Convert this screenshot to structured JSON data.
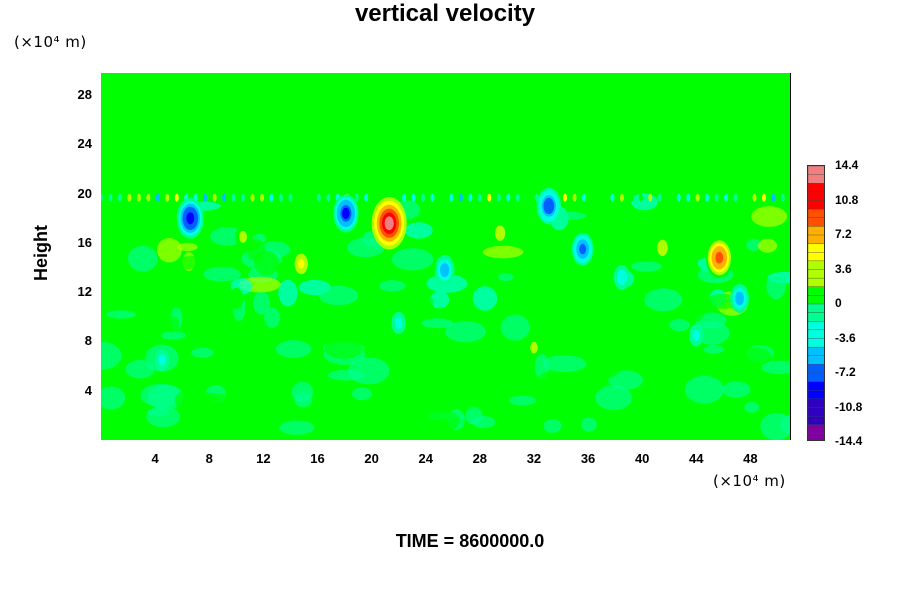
{
  "chart_data": {
    "type": "heatmap",
    "title": "vertical velocity",
    "ylabel": "Height",
    "y_unit_label": "(×10⁴ m)",
    "x_unit_label": "(×10⁴ m)",
    "x_ticks": [
      "4",
      "8",
      "12",
      "16",
      "20",
      "24",
      "28",
      "32",
      "36",
      "40",
      "44",
      "48"
    ],
    "y_ticks": [
      "4",
      "8",
      "12",
      "16",
      "20",
      "24",
      "28"
    ],
    "xlim": [
      0,
      51
    ],
    "ylim": [
      0,
      29.8
    ],
    "colorbar_ticks": [
      "14.4",
      "10.8",
      "7.2",
      "3.6",
      "0",
      "-3.6",
      "-7.2",
      "-10.8",
      "-14.4"
    ],
    "colorbar_range": [
      -14.4,
      14.4
    ],
    "colorbar_levels": 32,
    "features": [
      {
        "x": 21.3,
        "y": 17.6,
        "value": 14.0
      },
      {
        "x": 45.7,
        "y": 14.8,
        "value": 9.5
      },
      {
        "x": 6.6,
        "y": 18.0,
        "value": -9.5
      },
      {
        "x": 18.1,
        "y": 18.4,
        "value": -8.5
      },
      {
        "x": 33.1,
        "y": 19.0,
        "value": -8.0
      },
      {
        "x": 35.6,
        "y": 15.5,
        "value": -6.5
      },
      {
        "x": 25.4,
        "y": 13.8,
        "value": -5.5
      },
      {
        "x": 14.8,
        "y": 14.3,
        "value": 4.5
      },
      {
        "x": 41.5,
        "y": 15.6,
        "value": 4.0
      },
      {
        "x": 47.2,
        "y": 11.5,
        "value": -5.0
      },
      {
        "x": 10.5,
        "y": 16.5,
        "value": 3.0
      },
      {
        "x": 29.5,
        "y": 16.8,
        "value": 3.5
      },
      {
        "x": 38.5,
        "y": 13.2,
        "value": -3.5
      },
      {
        "x": 4.5,
        "y": 6.5,
        "value": -2.5
      },
      {
        "x": 22.0,
        "y": 9.5,
        "value": -2.5
      },
      {
        "x": 32.0,
        "y": 7.5,
        "value": 2.5
      },
      {
        "x": 44.0,
        "y": 8.5,
        "value": -2.5
      },
      {
        "x": 10.0,
        "y": 11.5,
        "value": 2.0
      }
    ],
    "turbulent_layer": [
      10.5,
      20.0
    ]
  },
  "footer": {
    "time_label": "TIME = 8600000.0"
  },
  "colors": {
    "background": "#00ff00",
    "palette": [
      "#8000a0",
      "#3000c0",
      "#0000ff",
      "#0060ff",
      "#00c0ff",
      "#00ffe0",
      "#00ff90",
      "#00ff00",
      "#b0ff00",
      "#ffff00",
      "#ffb000",
      "#ff5000",
      "#ff0000",
      "#f08080"
    ]
  }
}
